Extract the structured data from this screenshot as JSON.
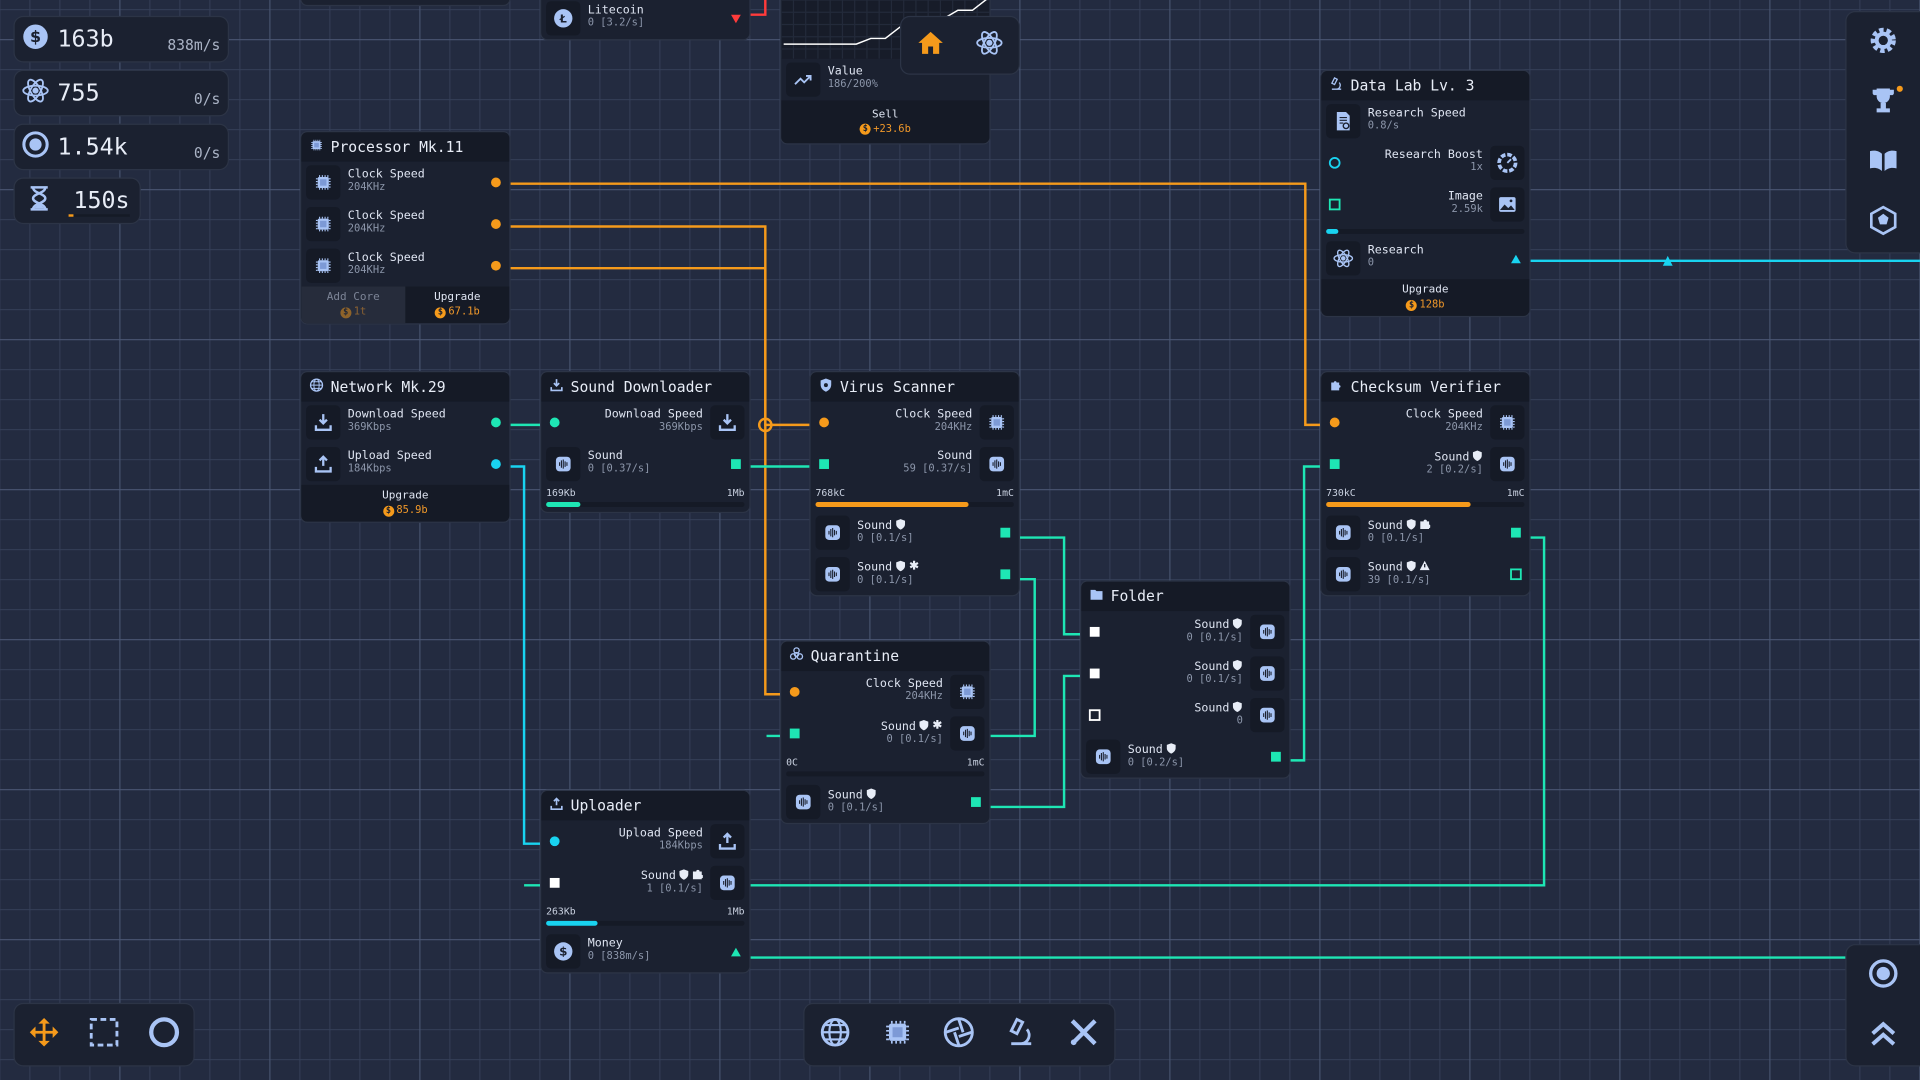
{
  "colors": {
    "orange": "#f59a1b",
    "cyan": "#19d3f0",
    "teal": "#1ee6b4",
    "white": "#ffffff",
    "red": "#ff3b3b",
    "green": "#1ee6b4",
    "icon": "#a9c4f5",
    "bg": "#232b40"
  },
  "hud": {
    "money": {
      "icon": "dollar-icon",
      "value": "163b",
      "rate": "838m/s"
    },
    "research": {
      "icon": "atom-icon",
      "value": "755",
      "rate": "0/s"
    },
    "tokens": {
      "icon": "target-icon",
      "value": "1.54k",
      "rate": "0/s"
    },
    "timer": {
      "icon": "hourglass-icon",
      "value": "150s",
      "progress": 0.08
    }
  },
  "view_toggle": {
    "home": "home-icon",
    "research": "atom-icon",
    "active": "home"
  },
  "market": {
    "value_label": "Value",
    "value": "186/200%",
    "sell_label": "Sell",
    "sell_value": "+23.6b",
    "value_history": [
      0,
      0,
      0,
      0,
      0,
      0,
      10,
      10,
      30,
      30,
      45,
      45,
      60,
      60,
      80
    ]
  },
  "nodes": {
    "litecoin": {
      "rows": [
        {
          "type": "out",
          "label": "Litecoin",
          "value": "0 [3.2/s]",
          "icon": "litecoin-icon",
          "port": "triangle-down-red"
        }
      ]
    },
    "processor": {
      "title": "Processor Mk.11",
      "icon": "chip-icon",
      "rows": [
        {
          "type": "out",
          "label": "Clock Speed",
          "value": "204KHz",
          "icon": "chip-icon",
          "port": "circle-orange"
        },
        {
          "type": "out",
          "label": "Clock Speed",
          "value": "204KHz",
          "icon": "chip-icon",
          "port": "circle-orange"
        },
        {
          "type": "out",
          "label": "Clock Speed",
          "value": "204KHz",
          "icon": "chip-icon",
          "port": "circle-orange"
        }
      ],
      "footer": [
        {
          "label": "Add Core",
          "cost": "1t",
          "disabled": true
        },
        {
          "label": "Upgrade",
          "cost": "67.1b"
        }
      ]
    },
    "network": {
      "title": "Network Mk.29",
      "icon": "globe-icon",
      "rows": [
        {
          "type": "out",
          "label": "Download Speed",
          "value": "369Kbps",
          "icon": "download-icon",
          "port": "circle-teal"
        },
        {
          "type": "out",
          "label": "Upload Speed",
          "value": "184Kbps",
          "icon": "upload-icon",
          "port": "circle-cyan"
        }
      ],
      "footer": [
        {
          "label": "Upgrade",
          "cost": "85.9b"
        }
      ]
    },
    "sound_downloader": {
      "title": "Sound Downloader",
      "icon": "download-icon",
      "rows": [
        {
          "type": "in",
          "label": "Download Speed",
          "value": "369Kbps",
          "icon": "download-icon",
          "port": "circle-teal"
        },
        {
          "type": "out",
          "label": "Sound",
          "value": "0 [0.37/s]",
          "icon": "sound-icon",
          "port": "square-teal"
        },
        {
          "type": "bar",
          "left": "169Kb",
          "right": "1Mb",
          "progress": 0.17,
          "color": "teal"
        }
      ]
    },
    "virus_scanner": {
      "title": "Virus Scanner",
      "icon": "shield-bug-icon",
      "rows": [
        {
          "type": "in",
          "label": "Clock Speed",
          "value": "204KHz",
          "icon": "chip-icon",
          "port": "circle-orange"
        },
        {
          "type": "in",
          "label": "Sound",
          "value": "59 [0.37/s]",
          "icon": "sound-icon",
          "port": "square-teal"
        },
        {
          "type": "bar",
          "left": "768kC",
          "right": "1mC",
          "progress": 0.77,
          "color": "orange"
        },
        {
          "type": "out",
          "label": "Sound",
          "tags": [
            "shield"
          ],
          "value": "0 [0.1/s]",
          "icon": "sound-icon",
          "port": "square-teal"
        },
        {
          "type": "out",
          "label": "Sound",
          "tags": [
            "shield",
            "asterisk"
          ],
          "value": "0 [0.1/s]",
          "icon": "sound-icon",
          "port": "square-teal"
        }
      ]
    },
    "checksum_verifier": {
      "title": "Checksum Verifier",
      "icon": "puzzle-icon",
      "rows": [
        {
          "type": "in",
          "label": "Clock Speed",
          "value": "204KHz",
          "icon": "chip-icon",
          "port": "circle-orange"
        },
        {
          "type": "in",
          "label": "Sound",
          "tags": [
            "shield"
          ],
          "value": "2 [0.2/s]",
          "icon": "sound-icon",
          "port": "square-teal"
        },
        {
          "type": "bar",
          "left": "730kC",
          "right": "1mC",
          "progress": 0.73,
          "color": "orange"
        },
        {
          "type": "out",
          "label": "Sound",
          "tags": [
            "shield",
            "puzzle"
          ],
          "value": "0 [0.1/s]",
          "icon": "sound-icon",
          "port": "square-teal"
        },
        {
          "type": "out",
          "label": "Sound",
          "tags": [
            "shield",
            "warning"
          ],
          "value": "39 [0.1/s]",
          "icon": "sound-icon",
          "port": "square-teal-hollow"
        }
      ]
    },
    "data_lab": {
      "title": "Data Lab Lv. 3",
      "icon": "microscope-icon",
      "rows": [
        {
          "type": "static",
          "label": "Research Speed",
          "value": "0.8/s",
          "icon": "doc-search-icon"
        },
        {
          "type": "in",
          "label": "Research Boost",
          "value": "1x",
          "icon": "gauge-icon",
          "port": "circle-cyan-hollow"
        },
        {
          "type": "in",
          "label": "Image",
          "value": "2.59k",
          "icon": "image-icon",
          "port": "square-green-hollow"
        },
        {
          "type": "bar",
          "left": "",
          "right": "",
          "progress": 0.06,
          "color": "cyan"
        },
        {
          "type": "out",
          "label": "Research",
          "value": "0",
          "icon": "atom-icon",
          "port": "triangle-cyan"
        }
      ],
      "footer": [
        {
          "label": "Upgrade",
          "cost": "128b"
        }
      ]
    },
    "quarantine": {
      "title": "Quarantine",
      "icon": "biohazard-icon",
      "rows": [
        {
          "type": "in",
          "label": "Clock Speed",
          "value": "204KHz",
          "icon": "chip-icon",
          "port": "circle-orange"
        },
        {
          "type": "in",
          "label": "Sound",
          "tags": [
            "shield",
            "asterisk"
          ],
          "value": "0 [0.1/s]",
          "icon": "sound-icon",
          "port": "square-teal"
        },
        {
          "type": "bar",
          "left": "0C",
          "right": "1mC",
          "progress": 0,
          "color": "orange"
        },
        {
          "type": "out",
          "label": "Sound",
          "tags": [
            "shield"
          ],
          "value": "0 [0.1/s]",
          "icon": "sound-icon",
          "port": "square-teal"
        }
      ]
    },
    "folder": {
      "title": "Folder",
      "icon": "folder-icon",
      "rows": [
        {
          "type": "in",
          "label": "Sound",
          "tags": [
            "shield"
          ],
          "value": "0 [0.1/s]",
          "icon": "sound-icon",
          "port": "square-white"
        },
        {
          "type": "in",
          "label": "Sound",
          "tags": [
            "shield"
          ],
          "value": "0 [0.1/s]",
          "icon": "sound-icon",
          "port": "square-white"
        },
        {
          "type": "in",
          "label": "Sound",
          "tags": [
            "shield"
          ],
          "value": "0",
          "icon": "sound-icon",
          "port": "square-white-hollow"
        },
        {
          "type": "out",
          "label": "Sound",
          "tags": [
            "shield"
          ],
          "value": "0 [0.2/s]",
          "icon": "sound-icon",
          "port": "square-teal"
        }
      ]
    },
    "uploader": {
      "title": "Uploader",
      "icon": "upload-icon",
      "rows": [
        {
          "type": "in",
          "label": "Upload Speed",
          "value": "184Kbps",
          "icon": "upload-icon",
          "port": "circle-cyan"
        },
        {
          "type": "in",
          "label": "Sound",
          "tags": [
            "shield",
            "puzzle"
          ],
          "value": "1 [0.1/s]",
          "icon": "sound-icon",
          "port": "square-white"
        },
        {
          "type": "bar",
          "left": "263Kb",
          "right": "1Mb",
          "progress": 0.26,
          "color": "cyan"
        },
        {
          "type": "out",
          "label": "Money",
          "value": "0 [838m/s]",
          "icon": "dollar-icon",
          "port": "triangle-teal"
        }
      ]
    }
  },
  "right_toolbar": [
    {
      "icon": "gear-icon"
    },
    {
      "icon": "trophy-icon",
      "badge": true
    },
    {
      "icon": "book-icon"
    },
    {
      "icon": "hexagon-icon"
    }
  ],
  "right_bottom_toolbar": [
    {
      "icon": "target-icon"
    },
    {
      "icon": "double-chevron-up-icon"
    }
  ],
  "left_bottom_toolbar": [
    {
      "icon": "move-icon",
      "active": true
    },
    {
      "icon": "select-box-icon"
    },
    {
      "icon": "circle-icon"
    }
  ],
  "center_bottom_toolbar": [
    {
      "icon": "globe-icon"
    },
    {
      "icon": "chip-icon"
    },
    {
      "icon": "aperture-icon"
    },
    {
      "icon": "microscope-icon"
    },
    {
      "icon": "tools-icon"
    }
  ]
}
